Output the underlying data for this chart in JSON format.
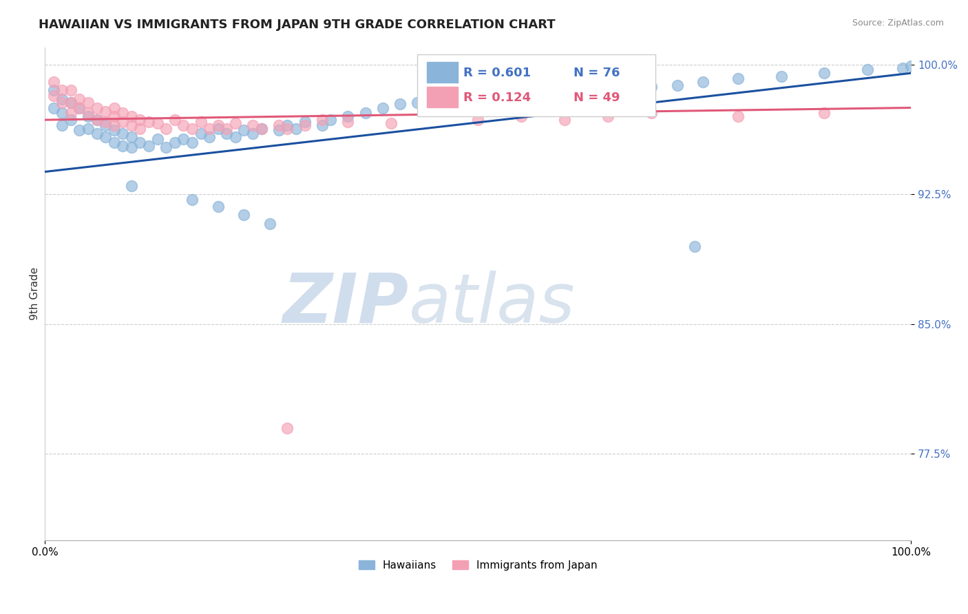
{
  "title": "HAWAIIAN VS IMMIGRANTS FROM JAPAN 9TH GRADE CORRELATION CHART",
  "source": "Source: ZipAtlas.com",
  "ylabel": "9th Grade",
  "xlabel": "",
  "xmin": 0.0,
  "xmax": 1.0,
  "ymin": 0.725,
  "ymax": 1.01,
  "yticks": [
    0.775,
    0.85,
    0.925,
    1.0
  ],
  "ytick_labels": [
    "77.5%",
    "85.0%",
    "92.5%",
    "100.0%"
  ],
  "xtick_labels": [
    "0.0%",
    "100.0%"
  ],
  "xticks": [
    0.0,
    1.0
  ],
  "blue_color": "#8ab4d9",
  "pink_color": "#f4a0b4",
  "blue_line_color": "#1a50a0",
  "pink_line_color": "#e05878",
  "ytick_color": "#4472c4",
  "legend_blue_R": "R = 0.601",
  "legend_blue_N": "N = 76",
  "legend_pink_R": "R = 0.124",
  "legend_pink_N": "N = 49",
  "blue_label": "Hawaiians",
  "pink_label": "Immigrants from Japan",
  "watermark_ZIP": "ZIP",
  "watermark_atlas": "atlas",
  "title_fontsize": 13,
  "label_fontsize": 11,
  "tick_fontsize": 11,
  "legend_fontsize": 13,
  "blue_trend_x": [
    0.0,
    1.0
  ],
  "blue_trend_y": [
    0.938,
    0.995
  ],
  "pink_trend_x": [
    0.0,
    1.0
  ],
  "pink_trend_y": [
    0.968,
    0.975
  ]
}
